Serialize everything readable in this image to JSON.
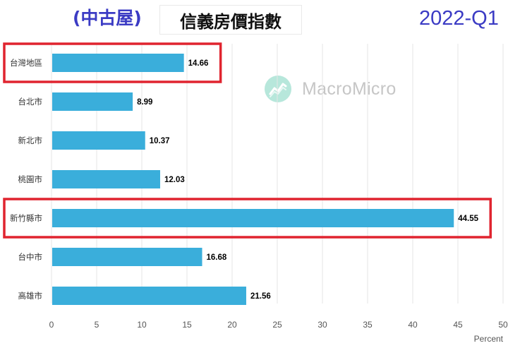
{
  "header": {
    "subtitle": "(中古屋)",
    "title": "信義房價指數",
    "period": "2022-Q1"
  },
  "watermark": {
    "text": "MacroMicro",
    "icon": "macromicro-logo-icon"
  },
  "colors": {
    "bar": "#3aaedb",
    "highlight": "#e0242f",
    "grid": "#e6e6e6",
    "accent_text": "#3b3bc4"
  },
  "chart_data": {
    "type": "bar",
    "orientation": "horizontal",
    "categories": [
      "台灣地區",
      "台北市",
      "新北市",
      "桃園市",
      "新竹縣市",
      "台中市",
      "高雄市"
    ],
    "values": [
      14.66,
      8.99,
      10.37,
      12.03,
      44.55,
      16.68,
      21.56
    ],
    "value_labels": [
      "14.66",
      "8.99",
      "10.37",
      "12.03",
      "44.55",
      "16.68",
      "21.56"
    ],
    "xlim": [
      0,
      50
    ],
    "xticks": [
      0,
      5,
      10,
      15,
      20,
      25,
      30,
      35,
      40,
      45,
      50
    ],
    "xlabel": "Percent",
    "grid": true,
    "highlighted": [
      "台灣地區",
      "新竹縣市"
    ]
  }
}
